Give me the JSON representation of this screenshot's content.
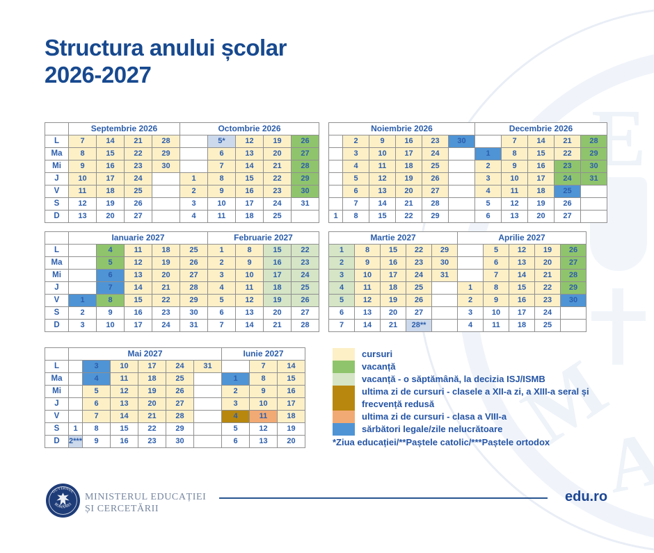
{
  "title": {
    "line1": "Structura anului școlar",
    "line2": "2026-2027"
  },
  "day_labels": [
    "L",
    "Ma",
    "Mi",
    "J",
    "V",
    "S",
    "D"
  ],
  "colors": {
    "cursuri": "#fdf0c7",
    "vacanta": "#8fc46c",
    "vacanta_isj": "#d5e5c6",
    "ultima_xii": "#b8870e",
    "ultima_viii": "#f2aa74",
    "sarbatori": "#4f94d5",
    "zi_speciala": "#ccd9ec",
    "text_blue": "#2b5dab",
    "navy": "#17498f"
  },
  "blocks": [
    {
      "id": "sep-oct",
      "has_day_labels": true,
      "narrow_cols": [],
      "months": [
        {
          "name": "Septembrie 2026",
          "cols": 4
        },
        {
          "name": "Octombrie 2026",
          "cols": 5
        }
      ],
      "rows": [
        [
          "7|y",
          "14|y",
          "21|y",
          "28|y",
          "|e",
          "5*|n",
          "12|y",
          "19|y",
          "26|g"
        ],
        [
          "8|y",
          "15|y",
          "22|y",
          "29|y",
          "|e",
          "6|y",
          "13|y",
          "20|y",
          "27|g"
        ],
        [
          "9|y",
          "16|y",
          "23|y",
          "30|y",
          "|e",
          "7|y",
          "14|y",
          "21|y",
          "28|g"
        ],
        [
          "10|y",
          "17|y",
          "24|y",
          "|e",
          "1|y",
          "8|y",
          "15|y",
          "22|y",
          "29|g"
        ],
        [
          "11|y",
          "18|y",
          "25|y",
          "|e",
          "2|y",
          "9|y",
          "16|y",
          "23|y",
          "30|g"
        ],
        [
          "12|w",
          "19|w",
          "26|w",
          "|e",
          "3|w",
          "10|w",
          "17|w",
          "24|w",
          "31|w"
        ],
        [
          "13|w",
          "20|w",
          "27|w",
          "|e",
          "4|w",
          "11|w",
          "18|w",
          "25|w",
          "|e"
        ]
      ]
    },
    {
      "id": "nov-dec",
      "has_day_labels": false,
      "narrow_cols": [
        0
      ],
      "months": [
        {
          "name": "Noiembrie 2026",
          "cols": 6
        },
        {
          "name": "Decembrie 2026",
          "cols": 5
        }
      ],
      "rows": [
        [
          "|e",
          "2|y",
          "9|y",
          "16|y",
          "23|y",
          "30|b",
          "|e",
          "7|y",
          "14|y",
          "21|y",
          "28|g"
        ],
        [
          "|e",
          "3|y",
          "10|y",
          "17|y",
          "24|y",
          "|e",
          "1|b",
          "8|y",
          "15|y",
          "22|y",
          "29|g"
        ],
        [
          "|e",
          "4|y",
          "11|y",
          "18|y",
          "25|y",
          "|e",
          "2|y",
          "9|y",
          "16|y",
          "23|g",
          "30|g"
        ],
        [
          "|e",
          "5|y",
          "12|y",
          "19|y",
          "26|y",
          "|e",
          "3|y",
          "10|y",
          "17|y",
          "24|g",
          "31|g"
        ],
        [
          "|e",
          "6|y",
          "13|y",
          "20|y",
          "27|y",
          "|e",
          "4|y",
          "11|y",
          "18|y",
          "25|b",
          "|e"
        ],
        [
          "|e",
          "7|w",
          "14|w",
          "21|w",
          "28|w",
          "|e",
          "5|w",
          "12|w",
          "19|w",
          "26|w",
          "|e"
        ],
        [
          "1|w",
          "8|w",
          "15|w",
          "22|w",
          "29|w",
          "|e",
          "6|w",
          "13|w",
          "20|w",
          "27|w",
          "|e"
        ]
      ]
    },
    {
      "id": "ian-feb",
      "has_day_labels": true,
      "narrow_cols": [],
      "months": [
        {
          "name": "Ianuarie 2027",
          "cols": 5
        },
        {
          "name": "Februarie 2027",
          "cols": 4
        }
      ],
      "rows": [
        [
          "|e",
          "4|g",
          "11|y",
          "18|y",
          "25|y",
          "1|y",
          "8|y",
          "15|l",
          "22|l"
        ],
        [
          "|e",
          "5|g",
          "12|y",
          "19|y",
          "26|y",
          "2|y",
          "9|y",
          "16|l",
          "23|l"
        ],
        [
          "|e",
          "6|b",
          "13|y",
          "20|y",
          "27|y",
          "3|y",
          "10|y",
          "17|l",
          "24|l"
        ],
        [
          "|e",
          "7|b",
          "14|y",
          "21|y",
          "28|y",
          "4|y",
          "11|y",
          "18|l",
          "25|l"
        ],
        [
          "1|b",
          "8|g",
          "15|y",
          "22|y",
          "29|y",
          "5|y",
          "12|y",
          "19|l",
          "26|l"
        ],
        [
          "2|w",
          "9|w",
          "16|w",
          "23|w",
          "30|w",
          "6|w",
          "13|w",
          "20|w",
          "27|w"
        ],
        [
          "3|w",
          "10|w",
          "17|w",
          "24|w",
          "31|w",
          "7|w",
          "14|w",
          "21|w",
          "28|w"
        ]
      ]
    },
    {
      "id": "mar-apr",
      "has_day_labels": false,
      "narrow_cols": [],
      "months": [
        {
          "name": "Martie 2027",
          "cols": 5
        },
        {
          "name": "Aprilie 2027",
          "cols": 5
        }
      ],
      "rows": [
        [
          "1|l",
          "8|y",
          "15|y",
          "22|y",
          "29|y",
          "|e",
          "5|y",
          "12|y",
          "19|y",
          "26|g"
        ],
        [
          "2|l",
          "9|y",
          "16|y",
          "23|y",
          "30|y",
          "|e",
          "6|y",
          "13|y",
          "20|y",
          "27|g"
        ],
        [
          "3|l",
          "10|y",
          "17|y",
          "24|y",
          "31|y",
          "|e",
          "7|y",
          "14|y",
          "21|y",
          "28|g"
        ],
        [
          "4|l",
          "11|y",
          "18|y",
          "25|y",
          "|e",
          "1|y",
          "8|y",
          "15|y",
          "22|y",
          "29|g"
        ],
        [
          "5|l",
          "12|y",
          "19|y",
          "26|y",
          "|e",
          "2|y",
          "9|y",
          "16|y",
          "23|y",
          "30|b"
        ],
        [
          "6|w",
          "13|w",
          "20|w",
          "27|w",
          "|e",
          "3|w",
          "10|w",
          "17|w",
          "24|w",
          "|e"
        ],
        [
          "7|w",
          "14|w",
          "21|w",
          "28**|n",
          "|e",
          "4|w",
          "11|w",
          "18|w",
          "25|w",
          "|e"
        ]
      ]
    },
    {
      "id": "mai-iun",
      "has_day_labels": true,
      "narrow_cols": [
        0
      ],
      "months": [
        {
          "name": "Mai 2027",
          "cols": 6
        },
        {
          "name": "Iunie 2027",
          "cols": 3
        }
      ],
      "rows": [
        [
          "|e",
          "3|b",
          "10|y",
          "17|y",
          "24|y",
          "31|y",
          "|e",
          "7|y",
          "14|y"
        ],
        [
          "|e",
          "4|b",
          "11|y",
          "18|y",
          "25|y",
          "|e",
          "1|b",
          "8|y",
          "15|y"
        ],
        [
          "|e",
          "5|y",
          "12|y",
          "19|y",
          "26|y",
          "|e",
          "2|y",
          "9|y",
          "16|y"
        ],
        [
          "|e",
          "6|y",
          "13|y",
          "20|y",
          "27|y",
          "|e",
          "3|y",
          "10|y",
          "17|y"
        ],
        [
          "|e",
          "7|y",
          "14|y",
          "21|y",
          "28|y",
          "|e",
          "4|d",
          "11|o",
          "18|y"
        ],
        [
          "1|w",
          "8|w",
          "15|w",
          "22|w",
          "29|w",
          "|e",
          "5|w",
          "12|w",
          "19|w"
        ],
        [
          "2***|n",
          "9|w",
          "16|w",
          "23|w",
          "30|w",
          "|e",
          "6|w",
          "13|w",
          "20|w"
        ]
      ]
    }
  ],
  "legend": {
    "items": [
      {
        "key": "cursuri",
        "label": "cursuri"
      },
      {
        "key": "vacanta",
        "label": "vacanță"
      },
      {
        "key": "vacanta_isj",
        "label": "vacanță - o săptămână, la decizia ISJ/ISMB"
      },
      {
        "key": "ultima_xii",
        "label": "ultima zi de cursuri - clasele a XII-a zi, a XIII-a seral și frecvență redusă"
      },
      {
        "key": "ultima_viii",
        "label": "ultima zi de cursuri - clasa a VIII-a"
      },
      {
        "key": "sarbatori",
        "label": "sărbători legale/zile nelucrătoare"
      }
    ],
    "footnote": "*Ziua educației/**Paștele catolic/***Paștele ortodox"
  },
  "footer": {
    "logo_arc_top": "GUVERNUL",
    "logo_arc_bottom": "ROMÂNIEI",
    "ministry_line1": "MINISTERUL EDUCAȚIEI",
    "ministry_line2": "ȘI CERCETĂRII",
    "site": "edu.ro"
  }
}
